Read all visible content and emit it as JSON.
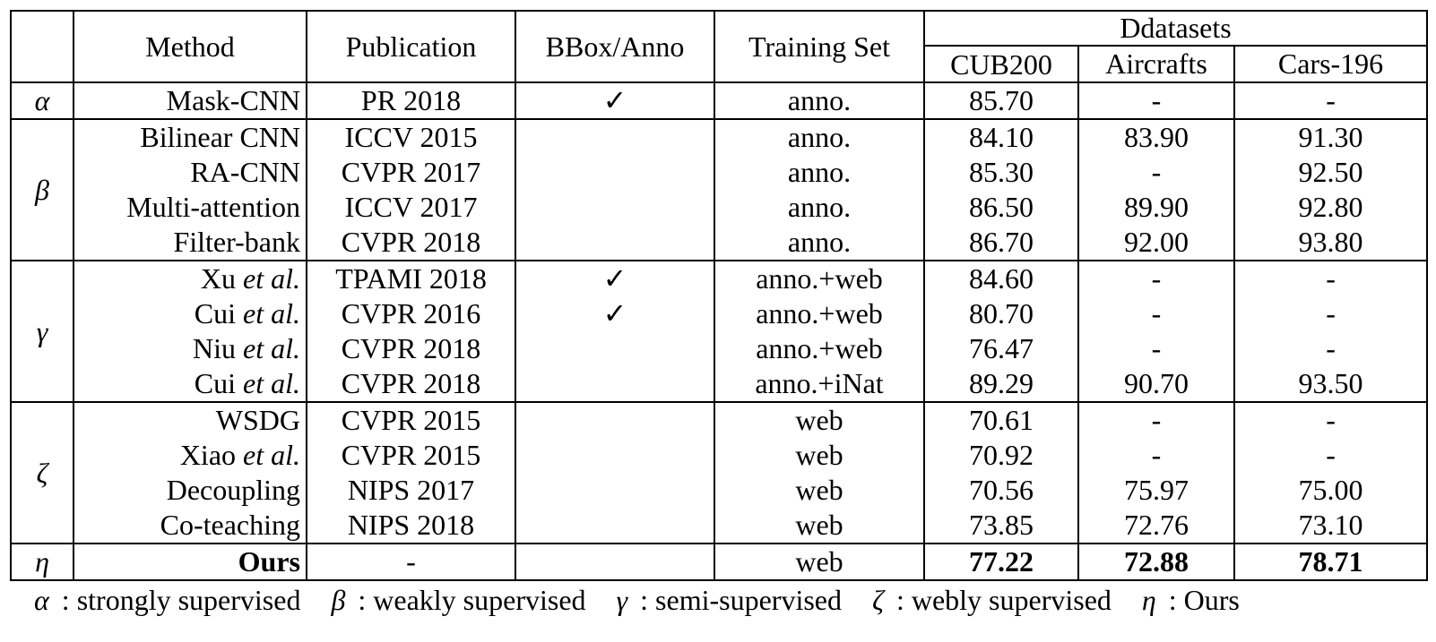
{
  "header": {
    "method": "Method",
    "publication": "Publication",
    "bbox": "BBox/Anno",
    "training": "Training Set",
    "datasets": "Ddatasets",
    "cub": "CUB200",
    "aircrafts": "Aircrafts",
    "cars": "Cars-196"
  },
  "groups": {
    "alpha": "α",
    "beta": "β",
    "gamma": "γ",
    "zeta": "ζ",
    "eta": "η"
  },
  "rows": [
    {
      "method": "Mask-CNN",
      "etal": "",
      "pub": "PR 2018",
      "bbox": "✓",
      "train": "anno.",
      "cub": "85.70",
      "air": "-",
      "cars": "-"
    },
    {
      "method": "Bilinear CNN",
      "etal": "",
      "pub": "ICCV 2015",
      "bbox": "",
      "train": "anno.",
      "cub": "84.10",
      "air": "83.90",
      "cars": "91.30"
    },
    {
      "method": "RA-CNN",
      "etal": "",
      "pub": "CVPR 2017",
      "bbox": "",
      "train": "anno.",
      "cub": "85.30",
      "air": "-",
      "cars": "92.50"
    },
    {
      "method": "Multi-attention",
      "etal": "",
      "pub": "ICCV 2017",
      "bbox": "",
      "train": "anno.",
      "cub": "86.50",
      "air": "89.90",
      "cars": "92.80"
    },
    {
      "method": "Filter-bank",
      "etal": "",
      "pub": "CVPR 2018",
      "bbox": "",
      "train": "anno.",
      "cub": "86.70",
      "air": "92.00",
      "cars": "93.80"
    },
    {
      "method": "Xu ",
      "etal": "et al.",
      "pub": "TPAMI 2018",
      "bbox": "✓",
      "train": "anno.+web",
      "cub": "84.60",
      "air": "-",
      "cars": "-"
    },
    {
      "method": "Cui ",
      "etal": "et al.",
      "pub": "CVPR 2016",
      "bbox": "✓",
      "train": "anno.+web",
      "cub": "80.70",
      "air": "-",
      "cars": "-"
    },
    {
      "method": "Niu ",
      "etal": "et al.",
      "pub": "CVPR 2018",
      "bbox": "",
      "train": "anno.+web",
      "cub": "76.47",
      "air": "-",
      "cars": "-"
    },
    {
      "method": "Cui ",
      "etal": "et al.",
      "pub": "CVPR 2018",
      "bbox": "",
      "train": "anno.+iNat",
      "cub": "89.29",
      "air": "90.70",
      "cars": "93.50"
    },
    {
      "method": "WSDG",
      "etal": "",
      "pub": "CVPR 2015",
      "bbox": "",
      "train": "web",
      "cub": "70.61",
      "air": "-",
      "cars": "-"
    },
    {
      "method": "Xiao ",
      "etal": "et al.",
      "pub": "CVPR 2015",
      "bbox": "",
      "train": "web",
      "cub": "70.92",
      "air": "-",
      "cars": "-"
    },
    {
      "method": "Decoupling",
      "etal": "",
      "pub": "NIPS 2017",
      "bbox": "",
      "train": "web",
      "cub": "70.56",
      "air": "75.97",
      "cars": "75.00"
    },
    {
      "method": "Co-teaching",
      "etal": "",
      "pub": "NIPS 2018",
      "bbox": "",
      "train": "web",
      "cub": "73.85",
      "air": "72.76",
      "cars": "73.10"
    },
    {
      "method": "Ours",
      "etal": "",
      "pub": "-",
      "bbox": "",
      "train": "web",
      "cub": "77.22",
      "air": "72.88",
      "cars": "78.71"
    }
  ],
  "legend": [
    {
      "sym": "α",
      "text": ": strongly supervised"
    },
    {
      "sym": "β",
      "text": ": weakly supervised"
    },
    {
      "sym": "γ",
      "text": ": semi-supervised"
    },
    {
      "sym": "ζ",
      "text": ": webly supervised"
    },
    {
      "sym": "η",
      "text": ": Ours"
    }
  ]
}
